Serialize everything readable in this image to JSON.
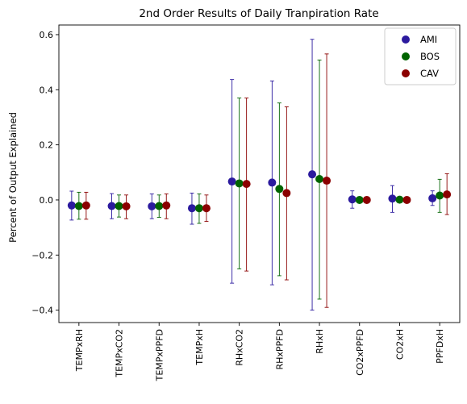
{
  "chart_data": {
    "type": "scatter",
    "title": "2nd Order Results of Daily Tranpiration Rate",
    "xlabel": "",
    "ylabel": "Percent of Output Explained",
    "categories": [
      "TEMPxRH",
      "TEMPxCO2",
      "TEMPxPPFD",
      "TEMPxH",
      "RHxCO2",
      "RHxPPFD",
      "RHxH",
      "CO2xPPFD",
      "CO2xH",
      "PPFDxH"
    ],
    "ylim": [
      -0.445,
      0.635
    ],
    "yticks": [
      -0.4,
      -0.2,
      0.0,
      0.2,
      0.4,
      0.6
    ],
    "ytick_labels": [
      "−0.4",
      "−0.2",
      "0.0",
      "0.2",
      "0.4",
      "0.6"
    ],
    "grid": false,
    "legend_position": "top-right",
    "series": [
      {
        "name": "AMI",
        "color": "#2b1a9e",
        "values": [
          -0.02,
          -0.022,
          -0.023,
          -0.03,
          0.067,
          0.063,
          0.093,
          0.002,
          0.005,
          0.006
        ],
        "lower": [
          -0.073,
          -0.068,
          -0.068,
          -0.088,
          -0.302,
          -0.308,
          -0.4,
          -0.03,
          -0.045,
          -0.02
        ],
        "upper": [
          0.032,
          0.023,
          0.022,
          0.025,
          0.437,
          0.432,
          0.583,
          0.033,
          0.052,
          0.033
        ]
      },
      {
        "name": "BOS",
        "color": "#006400",
        "values": [
          -0.022,
          -0.022,
          -0.022,
          -0.03,
          0.06,
          0.04,
          0.076,
          0.0,
          0.001,
          0.016
        ],
        "lower": [
          -0.07,
          -0.062,
          -0.063,
          -0.085,
          -0.25,
          -0.275,
          -0.36,
          -0.005,
          -0.005,
          -0.045
        ],
        "upper": [
          0.028,
          0.018,
          0.018,
          0.022,
          0.37,
          0.352,
          0.508,
          0.004,
          0.006,
          0.075
        ]
      },
      {
        "name": "CAV",
        "color": "#8b0000",
        "values": [
          -0.02,
          -0.023,
          -0.02,
          -0.03,
          0.058,
          0.025,
          0.07,
          0.0,
          0.0,
          0.02
        ],
        "lower": [
          -0.07,
          -0.068,
          -0.068,
          -0.078,
          -0.258,
          -0.29,
          -0.39,
          -0.003,
          -0.003,
          -0.053
        ],
        "upper": [
          0.028,
          0.018,
          0.022,
          0.018,
          0.37,
          0.338,
          0.53,
          0.003,
          0.003,
          0.095
        ]
      }
    ]
  }
}
